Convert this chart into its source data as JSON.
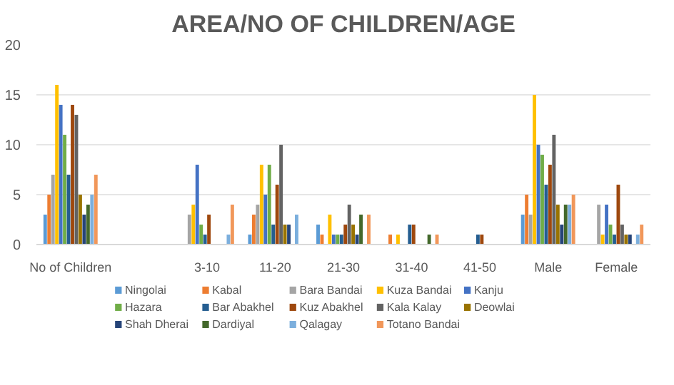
{
  "chart_data": {
    "type": "bar",
    "title": "AREA/NO OF CHILDREN/AGE",
    "categories": [
      "No of Children",
      null,
      "3-10",
      "11-20",
      "21-30",
      "31-40",
      "41-50",
      "Male",
      "Female"
    ],
    "series": [
      {
        "name": "Ningolai",
        "color": "#5b9bd5",
        "values": [
          3,
          null,
          0,
          1,
          2,
          0,
          0,
          3,
          0
        ]
      },
      {
        "name": "Kabal",
        "color": "#ed7d31",
        "values": [
          5,
          null,
          0,
          3,
          1,
          1,
          0,
          5,
          0
        ]
      },
      {
        "name": "Bara Bandai",
        "color": "#a5a5a5",
        "values": [
          7,
          null,
          3,
          4,
          0,
          0,
          0,
          3,
          4
        ]
      },
      {
        "name": "Kuza Bandai",
        "color": "#ffc000",
        "values": [
          16,
          null,
          4,
          8,
          3,
          1,
          0,
          15,
          1
        ]
      },
      {
        "name": "Kanju",
        "color": "#4472c4",
        "values": [
          14,
          null,
          8,
          5,
          1,
          0,
          0,
          10,
          4
        ]
      },
      {
        "name": "Hazara",
        "color": "#70ad47",
        "values": [
          11,
          null,
          2,
          8,
          1,
          0,
          0,
          9,
          2
        ]
      },
      {
        "name": "Bar Abakhel",
        "color": "#255e91",
        "values": [
          7,
          null,
          1,
          2,
          1,
          2,
          1,
          6,
          1
        ]
      },
      {
        "name": "Kuz Abakhel",
        "color": "#9e480e",
        "values": [
          14,
          null,
          3,
          6,
          2,
          2,
          1,
          8,
          6
        ]
      },
      {
        "name": "Kala Kalay",
        "color": "#636363",
        "values": [
          13,
          null,
          0,
          10,
          4,
          0,
          0,
          11,
          2
        ]
      },
      {
        "name": "Deowlai",
        "color": "#997300",
        "values": [
          5,
          null,
          0,
          2,
          2,
          0,
          0,
          4,
          1
        ]
      },
      {
        "name": "Shah Dherai",
        "color": "#264478",
        "values": [
          3,
          null,
          0,
          2,
          1,
          0,
          0,
          2,
          1
        ]
      },
      {
        "name": "Dardiyal",
        "color": "#43682b",
        "values": [
          4,
          null,
          0,
          0,
          3,
          1,
          0,
          4,
          0
        ]
      },
      {
        "name": "Qalagay",
        "color": "#7cafdd",
        "values": [
          5,
          null,
          1,
          3,
          0,
          0,
          0,
          4,
          1
        ]
      },
      {
        "name": "Totano Bandai",
        "color": "#f1975a",
        "values": [
          7,
          null,
          4,
          0,
          3,
          1,
          0,
          5,
          2
        ]
      }
    ],
    "ylim": [
      0,
      20
    ],
    "yticks": [
      0,
      5,
      10,
      15,
      20
    ],
    "grid": "y",
    "legend": "bottom"
  }
}
